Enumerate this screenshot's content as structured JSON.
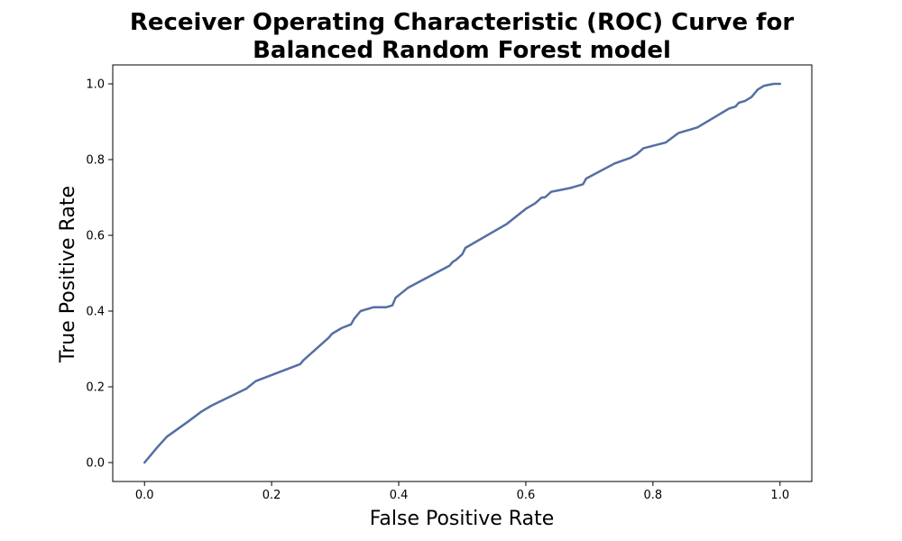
{
  "chart_data": {
    "type": "line",
    "title": "Receiver Operating Characteristic (ROC) Curve for\nBalanced Random Forest  model",
    "title_lines": [
      "Receiver Operating Characteristic (ROC) Curve for",
      "Balanced Random Forest  model"
    ],
    "xlabel": "False Positive Rate",
    "ylabel": "True Positive Rate",
    "xlim": [
      -0.05,
      1.05
    ],
    "ylim": [
      -0.05,
      1.05
    ],
    "xticks": [
      0.0,
      0.2,
      0.4,
      0.6,
      0.8,
      1.0
    ],
    "xtick_labels": [
      "0.0",
      "0.2",
      "0.4",
      "0.6",
      "0.8",
      "1.0"
    ],
    "yticks": [
      0.0,
      0.2,
      0.4,
      0.6,
      0.8,
      1.0
    ],
    "ytick_labels": [
      "0.0",
      "0.2",
      "0.4",
      "0.6",
      "0.8",
      "1.0"
    ],
    "grid": false,
    "line_color": "#5470a2",
    "series": [
      {
        "x": [
          0.0,
          0.02,
          0.035,
          0.07,
          0.09,
          0.105,
          0.16,
          0.175,
          0.245,
          0.25,
          0.29,
          0.295,
          0.305,
          0.31,
          0.325,
          0.33,
          0.34,
          0.36,
          0.38,
          0.39,
          0.395,
          0.415,
          0.48,
          0.485,
          0.49,
          0.5,
          0.505,
          0.57,
          0.6,
          0.61,
          0.615,
          0.625,
          0.63,
          0.64,
          0.655,
          0.67,
          0.68,
          0.69,
          0.695,
          0.74,
          0.765,
          0.775,
          0.785,
          0.82,
          0.84,
          0.87,
          0.91,
          0.92,
          0.93,
          0.935,
          0.945,
          0.955,
          0.965,
          0.975,
          0.99,
          1.0
        ],
        "y": [
          0.0,
          0.04,
          0.068,
          0.11,
          0.135,
          0.15,
          0.195,
          0.215,
          0.26,
          0.27,
          0.33,
          0.34,
          0.35,
          0.355,
          0.365,
          0.38,
          0.4,
          0.41,
          0.41,
          0.415,
          0.435,
          0.462,
          0.52,
          0.53,
          0.535,
          0.55,
          0.567,
          0.63,
          0.67,
          0.68,
          0.685,
          0.7,
          0.7,
          0.715,
          0.72,
          0.725,
          0.73,
          0.735,
          0.75,
          0.79,
          0.805,
          0.815,
          0.83,
          0.845,
          0.87,
          0.885,
          0.925,
          0.935,
          0.94,
          0.95,
          0.955,
          0.965,
          0.985,
          0.995,
          1.0,
          1.0
        ]
      }
    ]
  }
}
